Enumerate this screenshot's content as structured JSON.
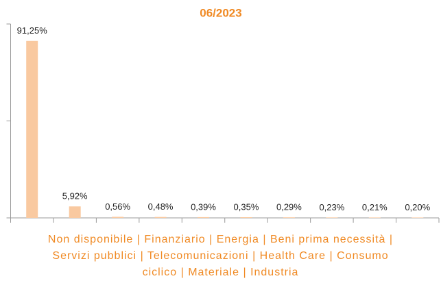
{
  "chart_data": {
    "type": "bar",
    "title": "06/2023",
    "categories": [
      "Non disponibile",
      "Finanziario",
      "Energia",
      "Beni prima necessità",
      "Servizi pubblici",
      "Telecomunicazioni",
      "Health Care",
      "Consumo ciclico",
      "Materiale",
      "Industria"
    ],
    "values": [
      91.25,
      5.92,
      0.56,
      0.48,
      0.39,
      0.35,
      0.29,
      0.23,
      0.21,
      0.2
    ],
    "value_labels": [
      "91,25%",
      "5,92%",
      "0,56%",
      "0,48%",
      "0,39%",
      "0,35%",
      "0,29%",
      "0,23%",
      "0,21%",
      "0,20%"
    ],
    "color": "#f9c9a0",
    "ylim": [
      0,
      100
    ],
    "yticks": [
      0,
      50,
      100
    ]
  }
}
